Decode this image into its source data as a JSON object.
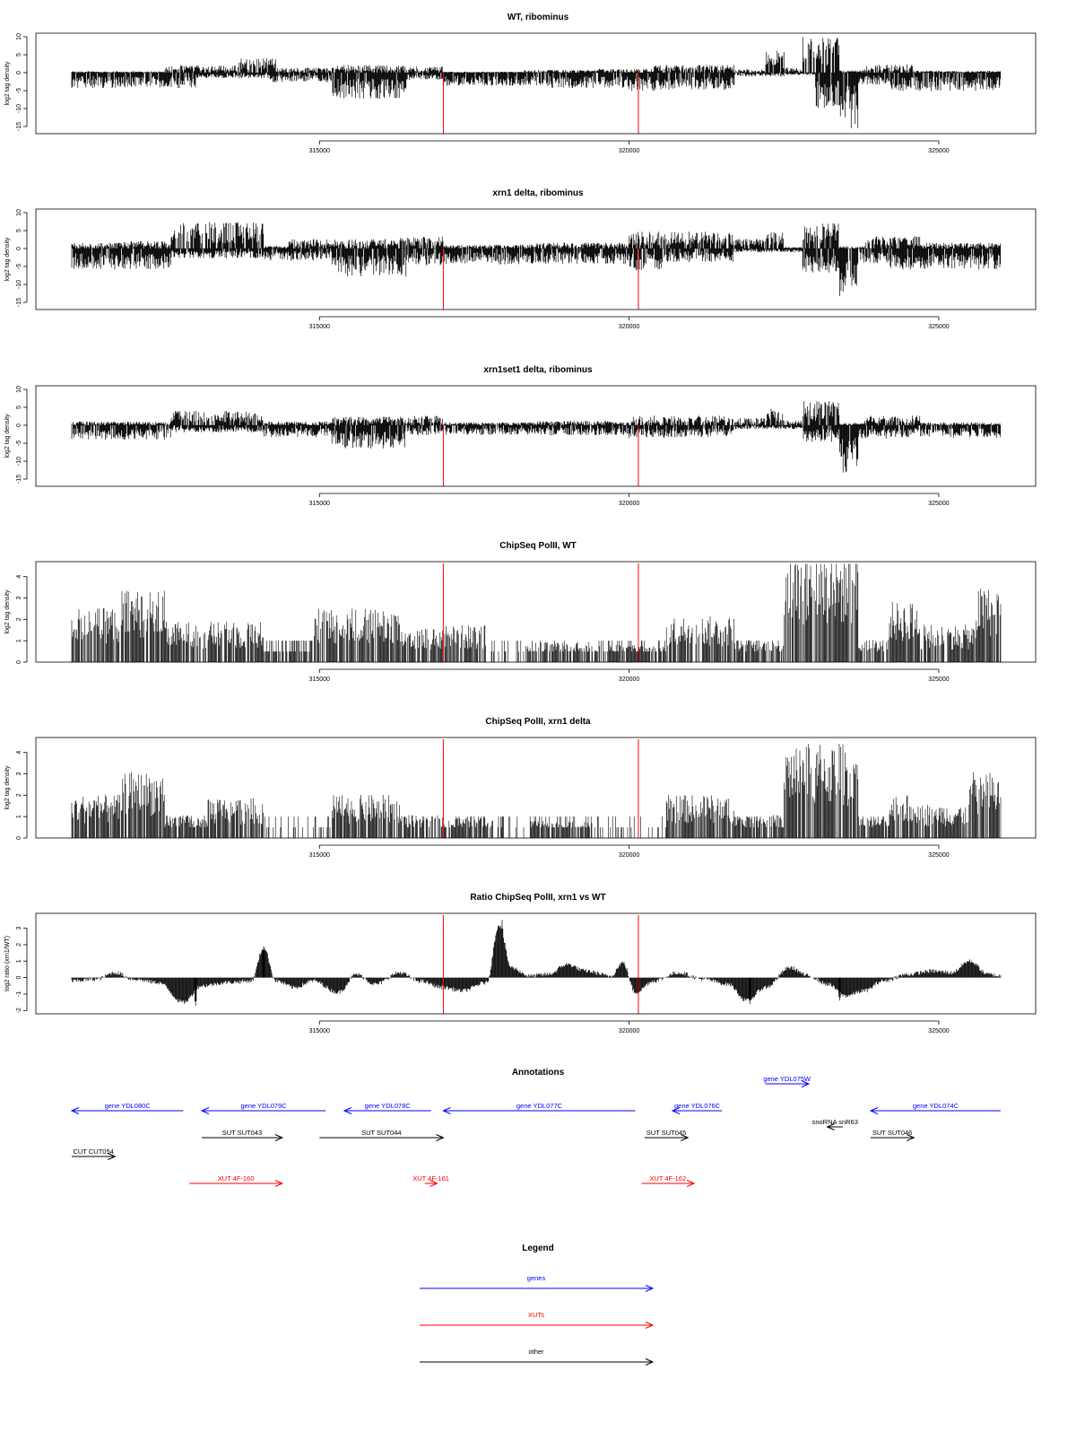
{
  "panels": [
    {
      "title": "WT, ribominus",
      "ylabel": "log2 tag density",
      "ylim": [
        -17,
        11
      ],
      "yticks": [
        -15,
        -10,
        -5,
        0,
        5,
        10
      ],
      "ytick_labels": [
        "-15",
        "-10",
        "-5",
        "0",
        "5",
        "10"
      ],
      "style": "bidir",
      "red_lines": [
        317000,
        320150
      ]
    },
    {
      "title": "xrn1 delta, ribominus",
      "ylabel": "log2 tag density",
      "ylim": [
        -17,
        11
      ],
      "yticks": [
        -15,
        -10,
        -5,
        0,
        5,
        10
      ],
      "ytick_labels": [
        "-15",
        "-10",
        "-5",
        "0",
        "5",
        "10"
      ],
      "style": "bidir",
      "red_lines": [
        317000,
        320150
      ]
    },
    {
      "title": "xrn1set1 delta, ribominus",
      "ylabel": "log2 tag density",
      "ylim": [
        -17,
        11
      ],
      "yticks": [
        -15,
        -10,
        -5,
        0,
        5,
        10
      ],
      "ytick_labels": [
        "-15",
        "-10",
        "-5",
        "0",
        "5",
        "10"
      ],
      "style": "bidir",
      "red_lines": [
        317000,
        320150
      ]
    },
    {
      "title": "ChipSeq PolII, WT",
      "ylabel": "log2 tag density",
      "ylim": [
        0,
        4.7
      ],
      "yticks": [
        0,
        1,
        2,
        3,
        4
      ],
      "ytick_labels": [
        "0",
        "1",
        "2",
        "3",
        "4"
      ],
      "style": "positive",
      "red_lines": [
        317000,
        320150
      ]
    },
    {
      "title": "ChipSeq PolII, xrn1 delta",
      "ylabel": "log2 tag density",
      "ylim": [
        0,
        4.7
      ],
      "yticks": [
        0,
        1,
        2,
        3,
        4
      ],
      "ytick_labels": [
        "0",
        "1",
        "2",
        "3",
        "4"
      ],
      "style": "positive",
      "red_lines": [
        317000,
        320150
      ]
    },
    {
      "title": "Ratio ChipSeq PolII, xrn1 vs WT",
      "ylabel": "log2 ratio (xrn1/WT)",
      "ylim": [
        -2.2,
        3.9
      ],
      "yticks": [
        -2,
        -1,
        0,
        1,
        2,
        3
      ],
      "ytick_labels": [
        "-2",
        "-1",
        "0",
        "1",
        "2",
        "3"
      ],
      "style": "ratio",
      "red_lines": [
        317000,
        320150
      ]
    }
  ],
  "chart_data": {
    "type": "bar",
    "x_range": [
      311000,
      326000
    ],
    "xticks": [
      315000,
      320000,
      325000
    ],
    "xtick_labels": [
      "315000",
      "320000",
      "325000"
    ],
    "bidir_profiles": [
      {
        "name": "WT, ribominus",
        "pos_segments": [
          [
            311000,
            312500,
            0.3
          ],
          [
            312500,
            313700,
            1.5
          ],
          [
            313700,
            314300,
            3.0
          ],
          [
            314300,
            315200,
            1.0
          ],
          [
            315200,
            316400,
            1.6
          ],
          [
            316400,
            317000,
            1.3
          ],
          [
            317000,
            318300,
            0.2
          ],
          [
            318300,
            319500,
            0.6
          ],
          [
            319500,
            320400,
            0.8
          ],
          [
            320400,
            321700,
            1.6
          ],
          [
            321700,
            322200,
            0.8
          ],
          [
            322200,
            322500,
            4.5
          ],
          [
            322500,
            322800,
            1.0
          ],
          [
            322800,
            323400,
            7.5
          ],
          [
            323400,
            323800,
            0.5
          ],
          [
            323800,
            324600,
            1.8
          ],
          [
            324600,
            326000,
            0.4
          ]
        ],
        "neg_segments": [
          [
            311000,
            313000,
            3.2
          ],
          [
            313000,
            314200,
            1.2
          ],
          [
            314200,
            315200,
            2.0
          ],
          [
            315200,
            316400,
            5.5
          ],
          [
            316400,
            317000,
            1.5
          ],
          [
            317000,
            318500,
            2.7
          ],
          [
            318500,
            320000,
            3.2
          ],
          [
            320000,
            320500,
            3.8
          ],
          [
            320500,
            321700,
            3.5
          ],
          [
            321700,
            322500,
            0.8
          ],
          [
            322500,
            323000,
            0.5
          ],
          [
            323000,
            323400,
            7.5
          ],
          [
            323400,
            323700,
            12.0
          ],
          [
            323700,
            324200,
            2.5
          ],
          [
            324200,
            326000,
            3.8
          ]
        ]
      },
      {
        "name": "xrn1 delta, ribominus",
        "pos_segments": [
          [
            311000,
            311800,
            1.2
          ],
          [
            311800,
            312600,
            1.5
          ],
          [
            312600,
            314100,
            5.5
          ],
          [
            314100,
            314500,
            0.5
          ],
          [
            314500,
            316300,
            2.0
          ],
          [
            316300,
            317000,
            2.5
          ],
          [
            317000,
            318500,
            0.8
          ],
          [
            318500,
            320000,
            1.2
          ],
          [
            320000,
            321700,
            3.5
          ],
          [
            321700,
            322200,
            2.0
          ],
          [
            322200,
            322500,
            3.5
          ],
          [
            322500,
            322800,
            0.3
          ],
          [
            322800,
            323400,
            5.5
          ],
          [
            323400,
            323800,
            0.5
          ],
          [
            323800,
            324700,
            2.5
          ],
          [
            324700,
            326000,
            1.2
          ]
        ],
        "neg_segments": [
          [
            311000,
            312600,
            4.3
          ],
          [
            312600,
            314100,
            2.0
          ],
          [
            314100,
            315200,
            2.5
          ],
          [
            315200,
            316400,
            6.0
          ],
          [
            316400,
            317000,
            3.5
          ],
          [
            317000,
            318600,
            3.3
          ],
          [
            318600,
            320000,
            3.2
          ],
          [
            320000,
            320600,
            4.5
          ],
          [
            320600,
            321700,
            2.8
          ],
          [
            321700,
            322800,
            0.8
          ],
          [
            322800,
            323400,
            5.0
          ],
          [
            323400,
            323700,
            10.5
          ],
          [
            323700,
            324200,
            3.2
          ],
          [
            324200,
            326000,
            4.5
          ]
        ]
      },
      {
        "name": "xrn1set1 delta, ribominus",
        "pos_segments": [
          [
            311000,
            312600,
            0.8
          ],
          [
            312600,
            314100,
            3.0
          ],
          [
            314100,
            315200,
            0.8
          ],
          [
            315200,
            316400,
            1.8
          ],
          [
            316400,
            317000,
            2.0
          ],
          [
            317000,
            318500,
            0.6
          ],
          [
            318500,
            320000,
            0.9
          ],
          [
            320000,
            321700,
            2.0
          ],
          [
            321700,
            322200,
            1.5
          ],
          [
            322200,
            322500,
            3.5
          ],
          [
            322500,
            322800,
            1.0
          ],
          [
            322800,
            323400,
            5.0
          ],
          [
            323400,
            323800,
            0.5
          ],
          [
            323800,
            324700,
            2.0
          ],
          [
            324700,
            326000,
            0.6
          ]
        ],
        "neg_segments": [
          [
            311000,
            312600,
            3.0
          ],
          [
            312600,
            314100,
            1.5
          ],
          [
            314100,
            315200,
            2.5
          ],
          [
            315200,
            316400,
            4.8
          ],
          [
            316400,
            317000,
            2.0
          ],
          [
            317000,
            318500,
            2.0
          ],
          [
            318500,
            320000,
            2.1
          ],
          [
            320000,
            320500,
            2.8
          ],
          [
            320500,
            321700,
            2.6
          ],
          [
            321700,
            322800,
            0.8
          ],
          [
            322800,
            323400,
            3.5
          ],
          [
            323400,
            323700,
            10.0
          ],
          [
            323700,
            324200,
            2.8
          ],
          [
            324200,
            326000,
            2.6
          ]
        ]
      }
    ],
    "chip_profiles": [
      {
        "name": "ChipSeq PolII, WT",
        "segments": [
          [
            311000,
            311800,
            1.9
          ],
          [
            311800,
            312500,
            2.5
          ],
          [
            312500,
            314100,
            1.4
          ],
          [
            314100,
            314900,
            0.3
          ],
          [
            314900,
            316300,
            1.9
          ],
          [
            316300,
            317000,
            1.2
          ],
          [
            317000,
            317700,
            1.3
          ],
          [
            317700,
            318300,
            0.15
          ],
          [
            318300,
            319400,
            0.7
          ],
          [
            319400,
            320600,
            0.6
          ],
          [
            320600,
            321700,
            1.6
          ],
          [
            321700,
            322500,
            0.8
          ],
          [
            322500,
            323700,
            3.8
          ],
          [
            323700,
            324200,
            0.8
          ],
          [
            324200,
            324700,
            2.1
          ],
          [
            324700,
            325600,
            1.3
          ],
          [
            325600,
            326000,
            2.6
          ]
        ]
      },
      {
        "name": "ChipSeq PolII, xrn1 delta",
        "segments": [
          [
            311000,
            311800,
            1.5
          ],
          [
            311800,
            312500,
            2.3
          ],
          [
            312500,
            313200,
            0.8
          ],
          [
            313200,
            314100,
            1.4
          ],
          [
            314100,
            315200,
            0.15
          ],
          [
            315200,
            316300,
            1.5
          ],
          [
            316300,
            317000,
            0.8
          ],
          [
            317000,
            317800,
            0.7
          ],
          [
            317800,
            318400,
            0.1
          ],
          [
            318400,
            319400,
            0.6
          ],
          [
            319400,
            320600,
            0.25
          ],
          [
            320600,
            321700,
            1.5
          ],
          [
            321700,
            322500,
            0.8
          ],
          [
            322500,
            323700,
            3.3
          ],
          [
            323700,
            324200,
            0.7
          ],
          [
            324200,
            324700,
            1.5
          ],
          [
            324700,
            325500,
            1.2
          ],
          [
            325500,
            326000,
            2.3
          ]
        ]
      }
    ],
    "ratio_profile": {
      "name": "Ratio ChipSeq PolII, xrn1 vs WT",
      "points": [
        [
          311000,
          -0.2
        ],
        [
          311400,
          -0.1
        ],
        [
          311700,
          0.3
        ],
        [
          312000,
          -0.1
        ],
        [
          312400,
          -0.3
        ],
        [
          312800,
          -1.5
        ],
        [
          313100,
          -0.5
        ],
        [
          313500,
          -0.3
        ],
        [
          313900,
          -0.2
        ],
        [
          314100,
          1.8
        ],
        [
          314300,
          -0.2
        ],
        [
          314600,
          -0.6
        ],
        [
          314900,
          -0.2
        ],
        [
          315300,
          -0.9
        ],
        [
          315600,
          0.2
        ],
        [
          315900,
          -0.4
        ],
        [
          316300,
          0.3
        ],
        [
          316600,
          -0.2
        ],
        [
          317000,
          -0.6
        ],
        [
          317300,
          -0.8
        ],
        [
          317700,
          -0.3
        ],
        [
          317900,
          3.2
        ],
        [
          318100,
          0.6
        ],
        [
          318400,
          0.1
        ],
        [
          318700,
          0.2
        ],
        [
          319000,
          0.8
        ],
        [
          319300,
          0.4
        ],
        [
          319700,
          0.1
        ],
        [
          319900,
          0.9
        ],
        [
          320100,
          -0.9
        ],
        [
          320400,
          -0.2
        ],
        [
          320800,
          0.3
        ],
        [
          321200,
          -0.1
        ],
        [
          321600,
          -0.4
        ],
        [
          321900,
          -1.4
        ],
        [
          322200,
          -0.6
        ],
        [
          322600,
          0.6
        ],
        [
          322900,
          0.1
        ],
        [
          323200,
          -0.4
        ],
        [
          323500,
          -1.1
        ],
        [
          323800,
          -0.8
        ],
        [
          324100,
          -0.2
        ],
        [
          324500,
          0.2
        ],
        [
          324900,
          0.4
        ],
        [
          325200,
          0.3
        ],
        [
          325500,
          1.0
        ],
        [
          325800,
          0.2
        ],
        [
          326000,
          0.1
        ]
      ]
    },
    "ratio_spikes": [
      [
        314100,
        1.9
      ],
      [
        317950,
        3.5
      ],
      [
        323400,
        -1.4
      ],
      [
        321950,
        -1.6
      ],
      [
        313000,
        -1.7
      ]
    ]
  },
  "annotations": {
    "title": "Annotations",
    "features": [
      {
        "label": "gene YDL080C",
        "start": 312800,
        "end": 311000,
        "row": 0,
        "color": "#0000ff"
      },
      {
        "label": "gene YDL079C",
        "start": 315100,
        "end": 313100,
        "row": 0,
        "color": "#0000ff"
      },
      {
        "label": "gene YDL078C",
        "start": 316800,
        "end": 315400,
        "row": 0,
        "color": "#0000ff"
      },
      {
        "label": "gene YDL077C",
        "start": 320100,
        "end": 317000,
        "row": 0,
        "color": "#0000ff"
      },
      {
        "label": "gene YDL076C",
        "start": 321500,
        "end": 320700,
        "row": 0,
        "color": "#0000ff"
      },
      {
        "label": "gene YDL075W",
        "start": 322200,
        "end": 322900,
        "row": -1,
        "color": "#0000ff"
      },
      {
        "label": "gene YDL074C",
        "start": 326000,
        "end": 323900,
        "row": 0,
        "color": "#0000ff"
      },
      {
        "label": "snoRNA snR63",
        "start": 323450,
        "end": 323200,
        "row": 0.6,
        "color": "#000000"
      },
      {
        "label": "SUT SUT043",
        "start": 313100,
        "end": 314400,
        "row": 1,
        "color": "#000000"
      },
      {
        "label": "SUT SUT044",
        "start": 315000,
        "end": 317000,
        "row": 1,
        "color": "#000000"
      },
      {
        "label": "SUT SUT045",
        "start": 320250,
        "end": 320950,
        "row": 1,
        "color": "#000000"
      },
      {
        "label": "SUT SUT046",
        "start": 323900,
        "end": 324600,
        "row": 1,
        "color": "#000000"
      },
      {
        "label": "CUT CUT054",
        "start": 311000,
        "end": 311700,
        "row": 1.7,
        "color": "#000000"
      },
      {
        "label": "XUT 4F-160",
        "start": 312900,
        "end": 314400,
        "row": 2.7,
        "color": "#ff0000"
      },
      {
        "label": "XUT 4F-161",
        "start": 316700,
        "end": 316900,
        "row": 2.7,
        "color": "#ff0000"
      },
      {
        "label": "XUT 4F-162",
        "start": 320200,
        "end": 321050,
        "row": 2.7,
        "color": "#ff0000"
      }
    ]
  },
  "legend": {
    "title": "Legend",
    "items": [
      {
        "label": "genes",
        "color": "#0000ff"
      },
      {
        "label": "XUTs",
        "color": "#ff0000"
      },
      {
        "label": "other",
        "color": "#000000"
      }
    ]
  }
}
